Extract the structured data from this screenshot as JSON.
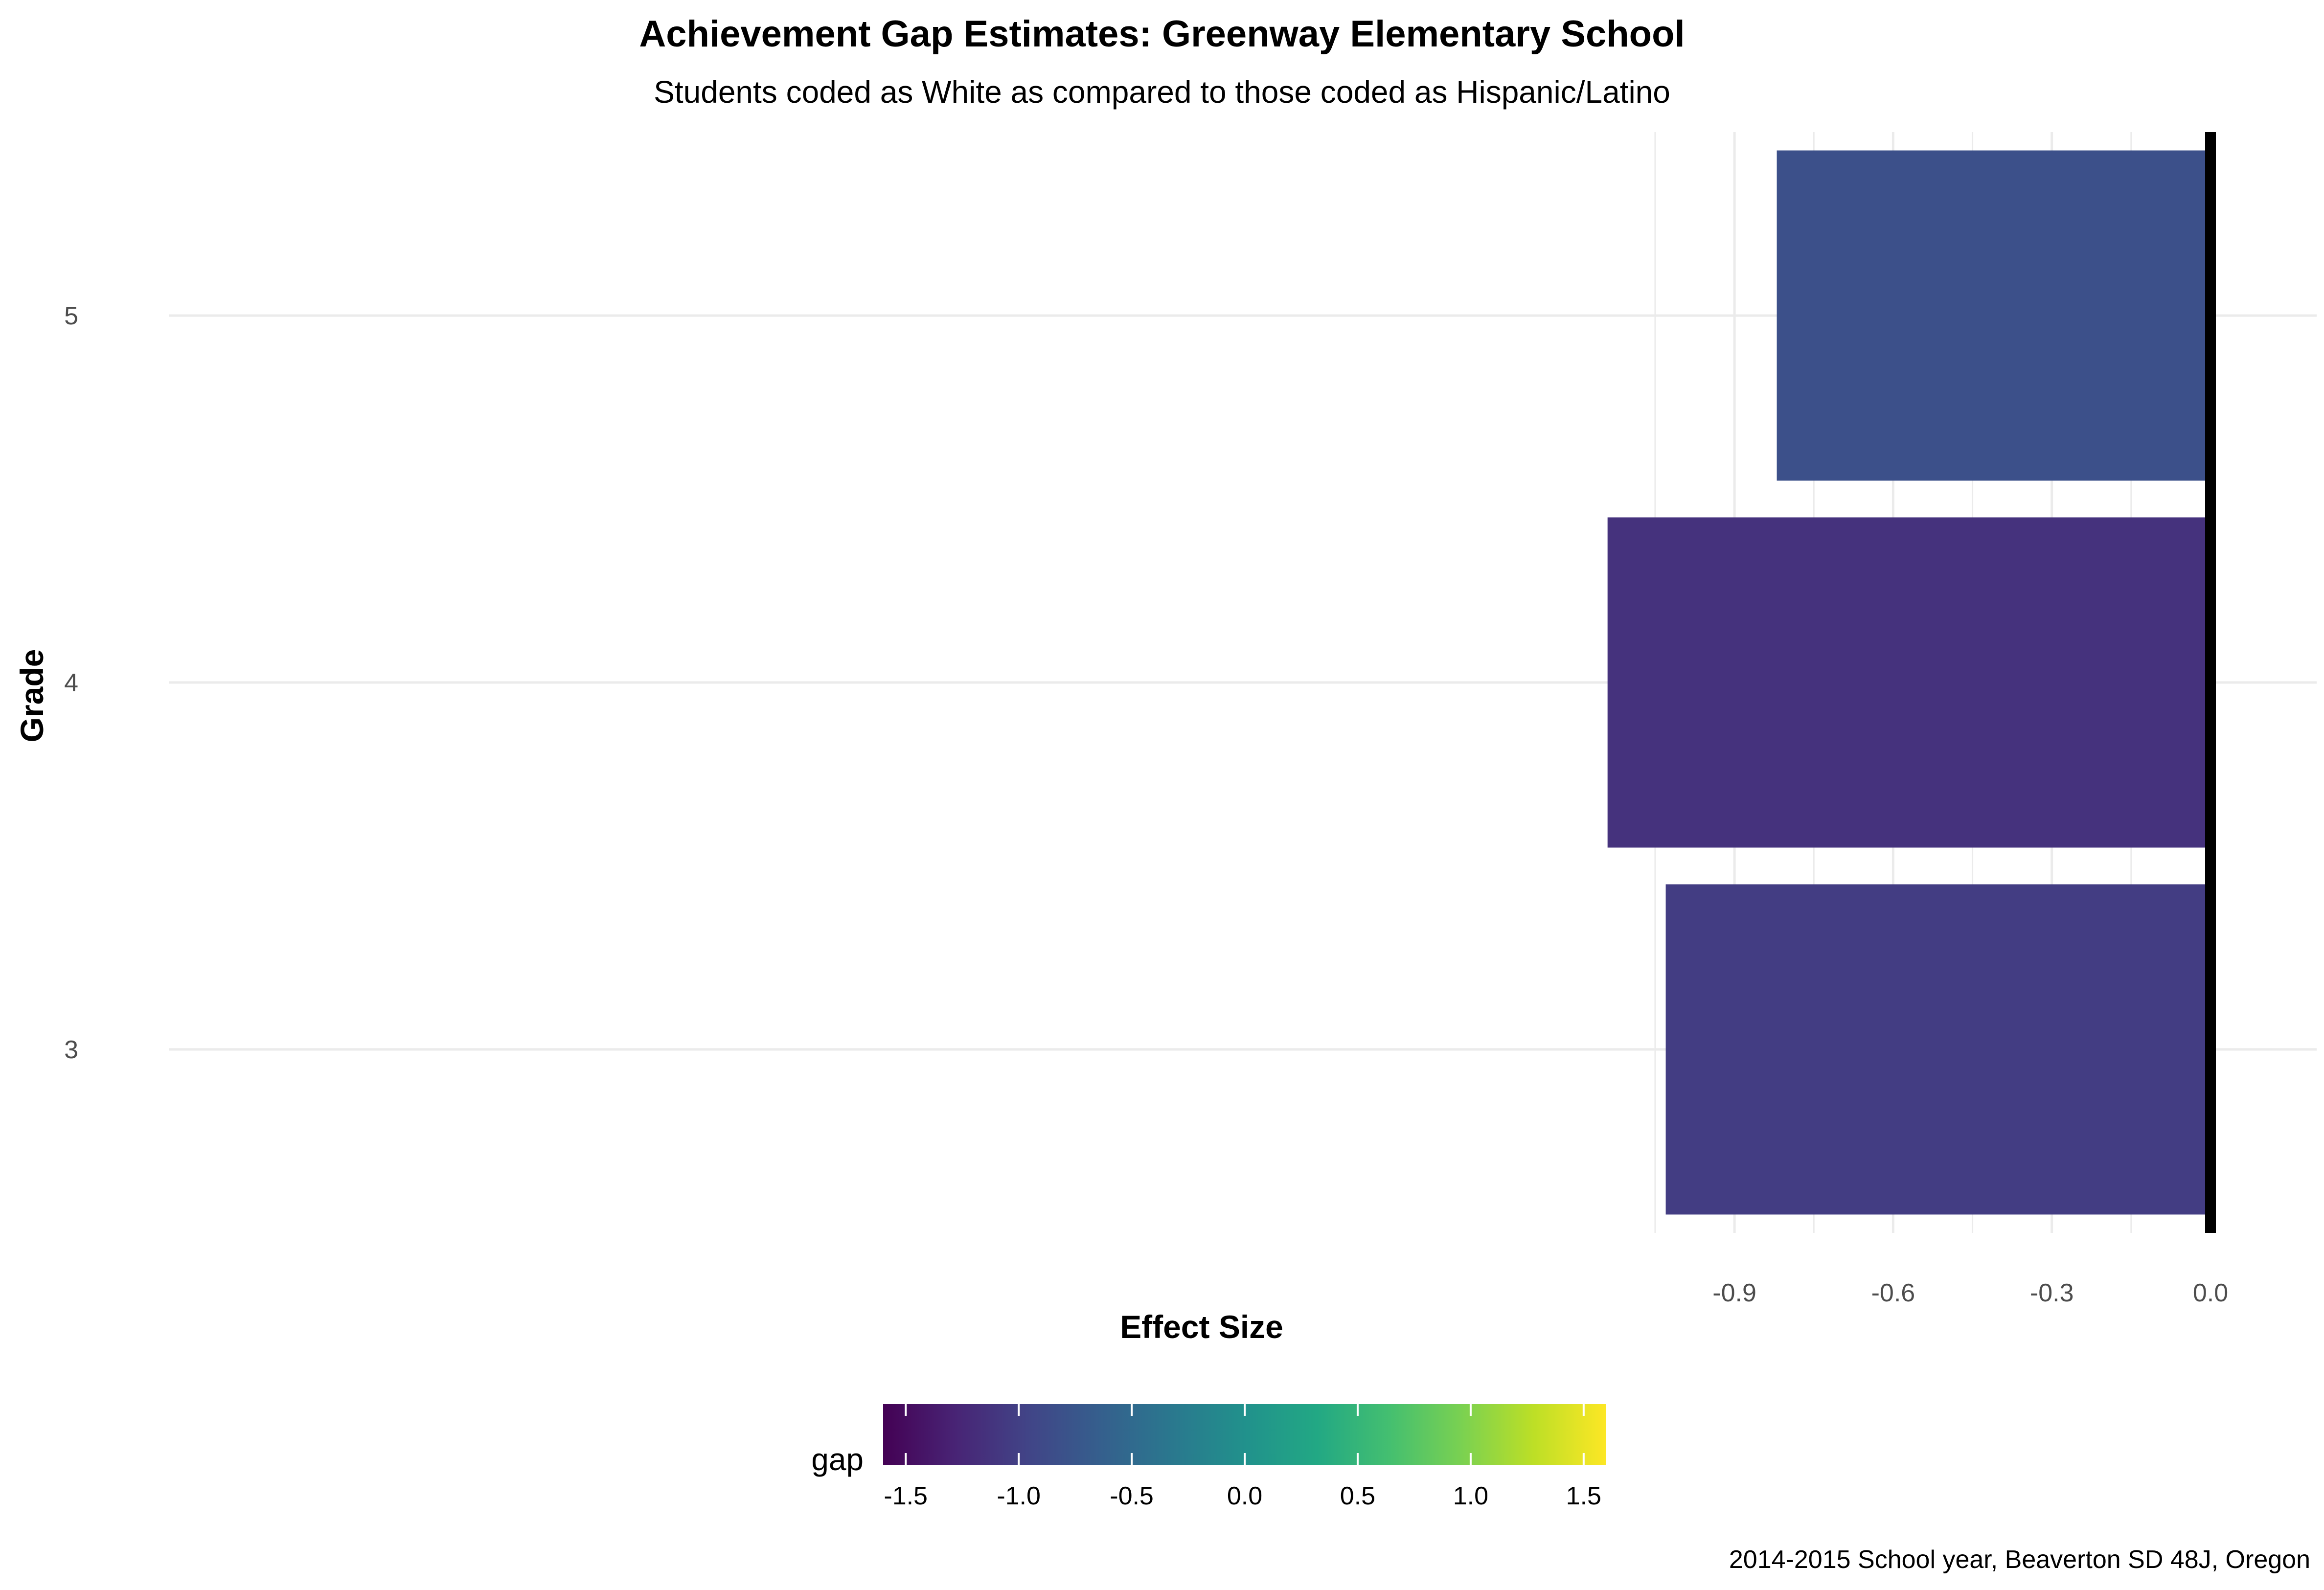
{
  "chart_data": {
    "type": "bar",
    "orientation": "horizontal",
    "title": "Achievement Gap Estimates: Greenway Elementary School",
    "subtitle": "Students coded as White as compared to those coded as Hispanic/Latino",
    "xlabel": "Effect Size",
    "ylabel": "Grade",
    "categories": [
      "3",
      "4",
      "5"
    ],
    "values": [
      -1.03,
      -1.14,
      -0.82
    ],
    "xlim": [
      -1.16,
      0.0
    ],
    "x_ticks": [
      "-0.9",
      "-0.6",
      "-0.3",
      "0.0"
    ],
    "x_tick_values": [
      -0.9,
      -0.6,
      -0.3,
      0.0
    ],
    "reference_line": 0.0,
    "grid": true,
    "legend": {
      "title": "gap",
      "position": "bottom",
      "type": "colorbar",
      "scale": "viridis",
      "range": [
        -1.6,
        1.6
      ],
      "ticks": [
        "-1.5",
        "-1.0",
        "-0.5",
        "0.0",
        "0.5",
        "1.0",
        "1.5"
      ],
      "tick_values": [
        -1.5,
        -1.0,
        -0.5,
        0.0,
        0.5,
        1.0,
        1.5
      ]
    },
    "caption": "2014-2015 School year, Beaverton SD 48J, Oregon"
  }
}
